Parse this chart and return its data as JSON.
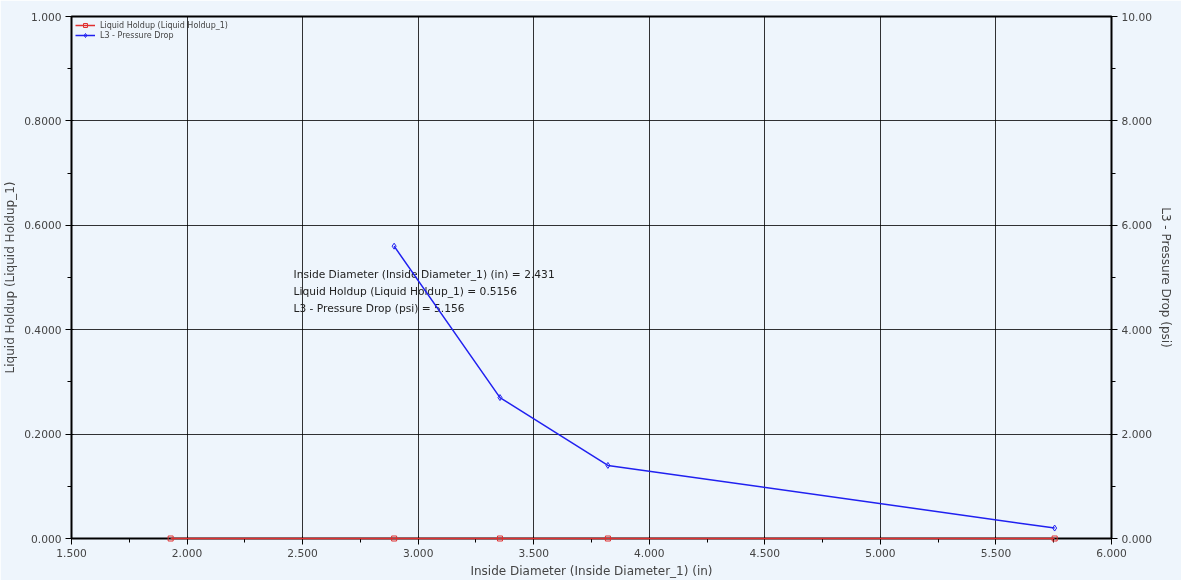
{
  "chart_data": {
    "type": "line",
    "xlabel": "Inside Diameter (Inside Diameter_1) (in)",
    "ylabel": "Liquid Holdup (Liquid Holdup_1)",
    "y2label": "L3 - Pressure Drop (psi)",
    "x": [
      1.929,
      2.896,
      3.354,
      3.821,
      5.754
    ],
    "series": [
      {
        "name": "Liquid Holdup (Liquid Holdup_1)",
        "color": "#e03030",
        "marker": "square",
        "values": [
          0,
          0,
          0,
          0,
          0
        ]
      },
      {
        "name": "L3 - Pressure Drop",
        "color": "#2020f0",
        "marker": "diamond",
        "axis": "y2",
        "values": [
          null,
          5.6,
          2.7,
          1.4,
          0.2
        ]
      }
    ],
    "xlim": [
      1.5,
      6.0
    ],
    "xticks": [
      {
        "value": 1.5,
        "label": "1.500"
      },
      {
        "value": 2.0,
        "label": "2.000"
      },
      {
        "value": 2.5,
        "label": "2.500"
      },
      {
        "value": 3.0,
        "label": "3.000"
      },
      {
        "value": 3.5,
        "label": "3.500"
      },
      {
        "value": 4.0,
        "label": "4.000"
      },
      {
        "value": 4.5,
        "label": "4.500"
      },
      {
        "value": 5.0,
        "label": "5.000"
      },
      {
        "value": 5.5,
        "label": "5.500"
      },
      {
        "value": 6.0,
        "label": "6.000"
      }
    ],
    "ylim": [
      0,
      1.0
    ],
    "yticks": [
      {
        "value": 0,
        "label": "0.000"
      },
      {
        "value": 0.2,
        "label": "0.2000"
      },
      {
        "value": 0.4,
        "label": "0.4000"
      },
      {
        "value": 0.6,
        "label": "0.6000"
      },
      {
        "value": 0.8,
        "label": "0.8000"
      },
      {
        "value": 1.0,
        "label": "1.000"
      }
    ],
    "y2lim": [
      0,
      10
    ],
    "y2ticks": [
      {
        "value": 0,
        "label": "0.000"
      },
      {
        "value": 2,
        "label": "2.000"
      },
      {
        "value": 4,
        "label": "4.000"
      },
      {
        "value": 6,
        "label": "6.000"
      },
      {
        "value": 8,
        "label": "8.000"
      },
      {
        "value": 10,
        "label": "10.00"
      }
    ],
    "annotations": [
      "Inside Diameter (Inside Diameter_1) (in) = 2.431",
      "Liquid Holdup (Liquid Holdup_1)          = 0.5156",
      "L3 - Pressure Drop (psi)                        = 5.156"
    ],
    "grid": true,
    "legend": "top left",
    "line_style": "solid"
  }
}
